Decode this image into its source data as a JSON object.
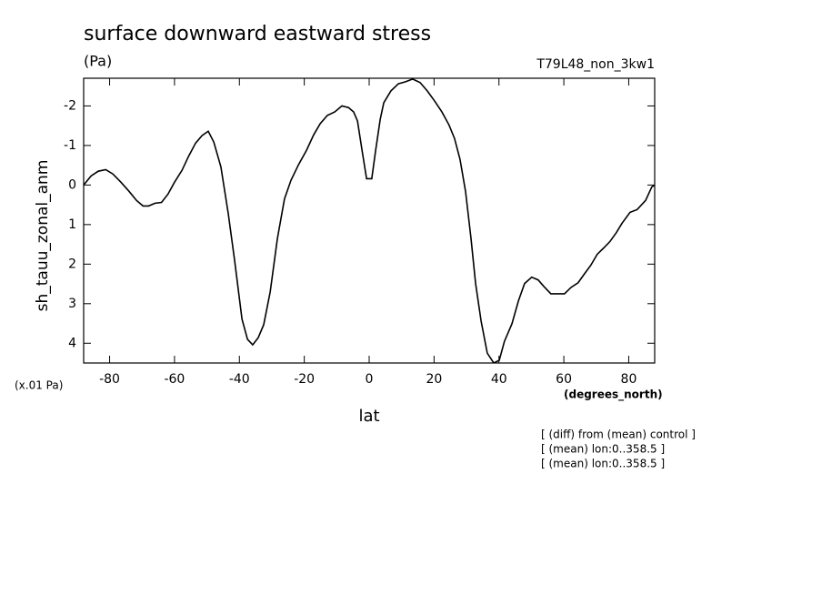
{
  "chart_data": {
    "type": "line",
    "title": "surface downward eastward stress",
    "subtitle": "(Pa)",
    "run_label": "T79L48_non_3kw1",
    "y_label": "sh_tauu_zonal_anm",
    "y_units": "(x.01 Pa)",
    "x_units": "(degrees_north)",
    "x_label": "lat",
    "annotations": [
      "[ (diff) from (mean) control ]",
      "[ (mean) lon:0..358.5 ]",
      "[ (mean) lon:0..358.5 ]"
    ],
    "xlim": [
      -88,
      88
    ],
    "ylim": [
      4.5,
      -2.7
    ],
    "xticks": [
      -80,
      -60,
      -40,
      -20,
      0,
      20,
      40,
      60,
      80
    ],
    "yticks": [
      -2,
      -1,
      0,
      1,
      2,
      3,
      4
    ],
    "series": [
      {
        "color": "#000000",
        "x": [
          -88,
          -85.7,
          -83.5,
          -81.2,
          -79,
          -76.5,
          -74,
          -71.7,
          -69.7,
          -68,
          -66,
          -64,
          -62,
          -60,
          -57.7,
          -55.7,
          -53.5,
          -51.5,
          -49.6,
          -47.9,
          -45.7,
          -43.4,
          -41.5,
          -39.2,
          -37.5,
          -35.9,
          -34.2,
          -32.5,
          -30.5,
          -28.3,
          -26.1,
          -24.1,
          -21.8,
          -19.3,
          -17.1,
          -15.1,
          -12.9,
          -10.6,
          -8.4,
          -6.4,
          -4.8,
          -3.6,
          -2.2,
          -0.8,
          0.8,
          2,
          3.4,
          4.5,
          6.7,
          9,
          11.2,
          13.4,
          15.7,
          17.9,
          20.2,
          22.4,
          24.6,
          26.3,
          28,
          29.7,
          31.4,
          32.8,
          34.5,
          36.4,
          38.4,
          40.1,
          41.7,
          44,
          46,
          47.9,
          50.1,
          52.1,
          53.8,
          56,
          58,
          60.2,
          62.2,
          64.4,
          66.4,
          68.3,
          70.3,
          72.3,
          74.2,
          76.2,
          77.9,
          80.4,
          82.6,
          85.2,
          87.1,
          88
        ],
        "values": [
          0,
          -0.23,
          -0.35,
          -0.39,
          -0.28,
          -0.07,
          0.16,
          0.39,
          0.53,
          0.53,
          0.46,
          0.44,
          0.23,
          -0.07,
          -0.37,
          -0.72,
          -1.06,
          -1.25,
          -1.36,
          -1.09,
          -0.46,
          0.74,
          1.89,
          3.39,
          3.9,
          4.04,
          3.86,
          3.53,
          2.7,
          1.36,
          0.35,
          -0.12,
          -0.51,
          -0.88,
          -1.27,
          -1.55,
          -1.76,
          -1.85,
          -2.0,
          -1.96,
          -1.85,
          -1.62,
          -0.88,
          -0.16,
          -0.16,
          -0.88,
          -1.66,
          -2.08,
          -2.38,
          -2.56,
          -2.61,
          -2.68,
          -2.59,
          -2.38,
          -2.12,
          -1.85,
          -1.52,
          -1.18,
          -0.65,
          0.16,
          1.36,
          2.49,
          3.44,
          4.25,
          4.5,
          4.43,
          3.95,
          3.51,
          2.93,
          2.49,
          2.33,
          2.4,
          2.56,
          2.75,
          2.75,
          2.75,
          2.59,
          2.47,
          2.24,
          2.03,
          1.75,
          1.59,
          1.43,
          1.2,
          0.97,
          0.69,
          0.62,
          0.39,
          0.05,
          0
        ]
      }
    ]
  }
}
